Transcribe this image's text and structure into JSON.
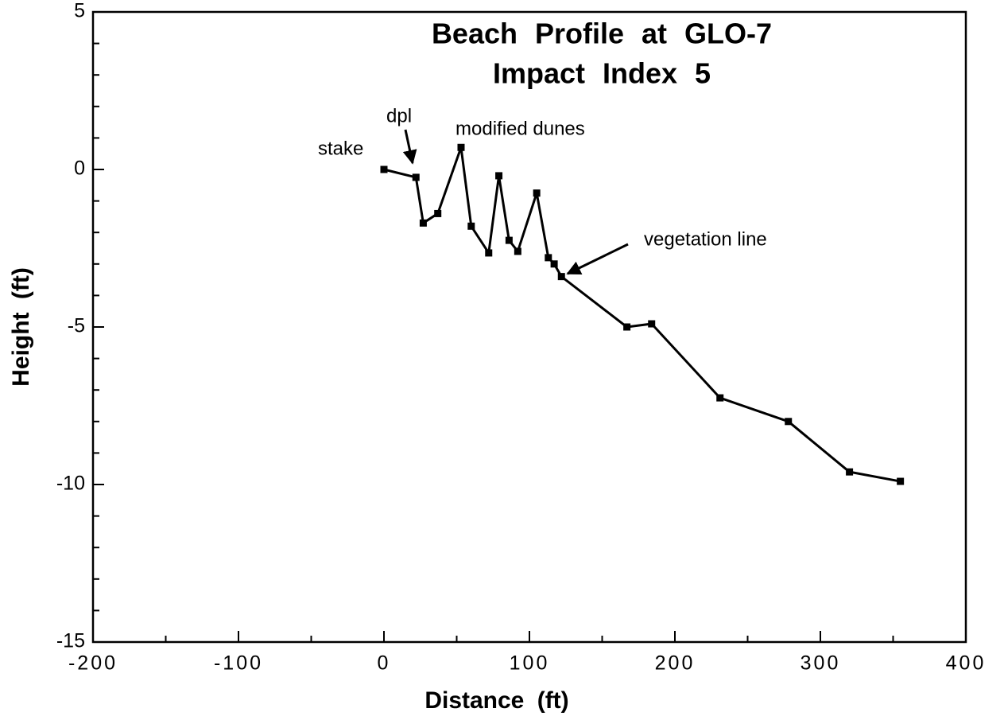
{
  "chart_data": {
    "type": "line",
    "title": "Beach Profile at GLO-7",
    "subtitle": "Impact Index 5",
    "x_label": "Distance (ft)",
    "y_label": "Height (ft)",
    "x": [
      0,
      22,
      27,
      37,
      53,
      60,
      72,
      79,
      86,
      92,
      105,
      113,
      117,
      122,
      167,
      184,
      231,
      278,
      320,
      355
    ],
    "series": [
      {
        "color": "#000000",
        "values": [
          0,
          -0.25,
          -1.7,
          -1.4,
          0.7,
          -1.8,
          -2.65,
          -0.2,
          -2.25,
          -2.6,
          -0.75,
          -2.8,
          -3.0,
          -3.4,
          -5.0,
          -4.9,
          -7.25,
          -8.0,
          -9.6,
          -9.9
        ]
      }
    ],
    "annotations": [
      "stake",
      "dpl",
      "modified dunes",
      "vegetation line"
    ],
    "xlim": [
      -200,
      400
    ],
    "xticks": [
      -200,
      -100,
      0,
      100,
      200,
      300,
      400
    ],
    "xticks_minor": [
      -150,
      -50,
      50,
      150,
      250,
      350
    ],
    "ylim": [
      -15,
      5
    ],
    "yticks": [
      -15,
      -10,
      -5,
      0,
      5
    ],
    "yticks_minor": [
      -14,
      -13,
      -12,
      -11,
      -9,
      -8,
      -7,
      -6,
      -4,
      -3,
      -2,
      -1,
      1,
      2,
      3,
      4
    ],
    "grid": false
  }
}
